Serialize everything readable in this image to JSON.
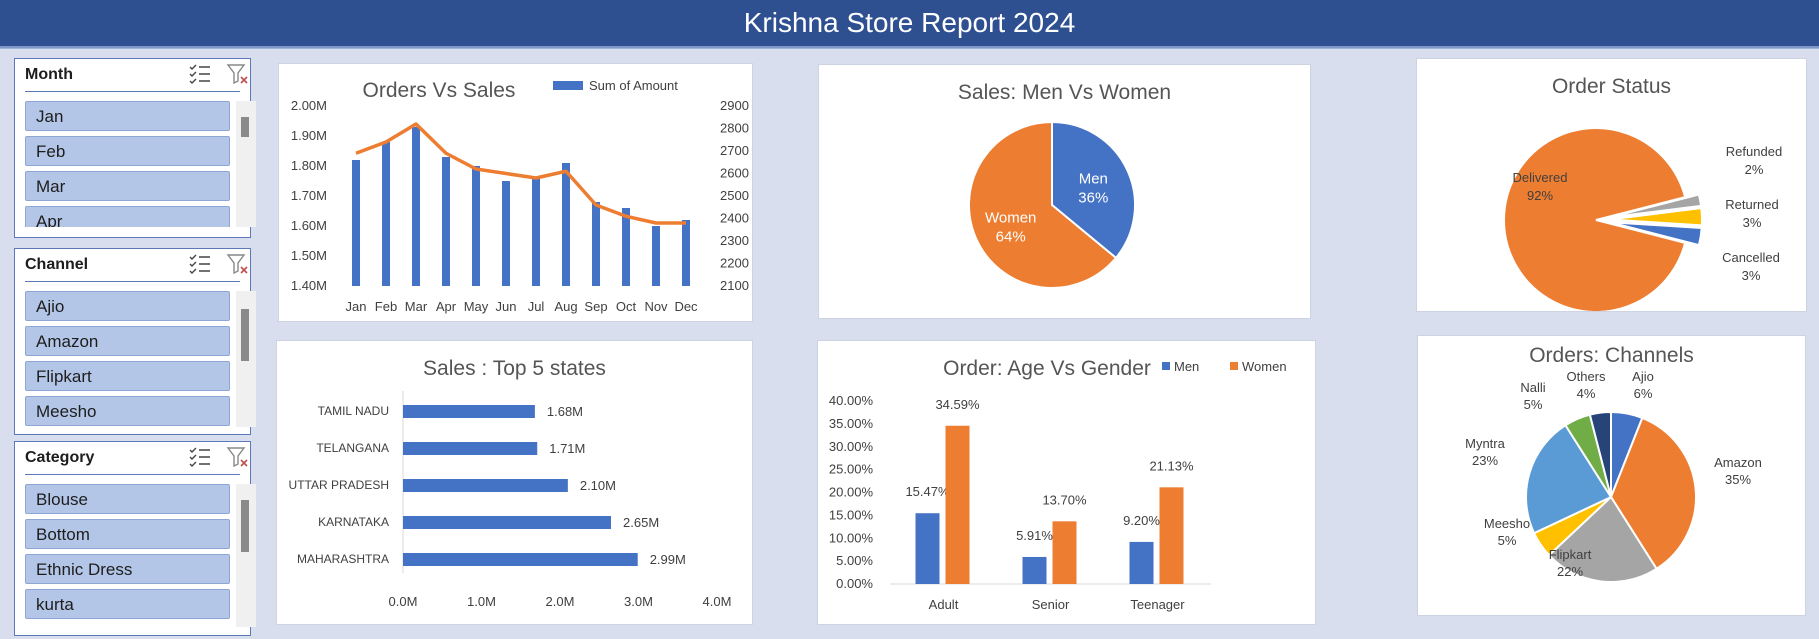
{
  "header": {
    "title": "Krishna Store Report 2024"
  },
  "slicers": {
    "month": {
      "label": "Month",
      "items": [
        "Jan",
        "Feb",
        "Mar",
        "Apr"
      ]
    },
    "channel": {
      "label": "Channel",
      "items": [
        "Ajio",
        "Amazon",
        "Flipkart",
        "Meesho"
      ]
    },
    "category": {
      "label": "Category",
      "items": [
        "Blouse",
        "Bottom",
        "Ethnic Dress",
        "kurta"
      ]
    }
  },
  "colors": {
    "blue": "#4472c4",
    "orange": "#ed7d31",
    "gray": "#a5a5a5",
    "yellow": "#ffc000",
    "lightblue": "#5b9bd5",
    "green": "#70ad47",
    "navy": "#264478"
  },
  "chart_data": [
    {
      "type": "bar",
      "title": "Orders Vs Sales",
      "categories": [
        "Jan",
        "Feb",
        "Mar",
        "Apr",
        "May",
        "Jun",
        "Jul",
        "Aug",
        "Sep",
        "Oct",
        "Nov",
        "Dec"
      ],
      "series": [
        {
          "name": "Sum of Amount",
          "values": [
            1.82,
            1.88,
            1.93,
            1.83,
            1.8,
            1.75,
            1.76,
            1.81,
            1.68,
            1.66,
            1.6,
            1.62
          ]
        },
        {
          "values": [
            2690,
            2740,
            2820,
            2690,
            2620,
            2600,
            2580,
            2610,
            2460,
            2410,
            2380,
            2380
          ]
        }
      ],
      "y_ticks": [
        "2.00M",
        "1.90M",
        "1.80M",
        "1.70M",
        "1.60M",
        "1.50M",
        "1.40M"
      ],
      "y2_ticks": [
        "2900",
        "2800",
        "2700",
        "2600",
        "2500",
        "2400",
        "2300",
        "2200",
        "2100"
      ],
      "ylim": [
        1.4,
        2.0
      ],
      "y2lim": [
        2100,
        2900
      ],
      "legend": "top-right"
    },
    {
      "type": "pie",
      "title": "Sales: Men Vs Women",
      "categories": [
        "Men",
        "Women"
      ],
      "values": [
        36,
        64
      ],
      "labels": [
        "36%",
        "64%"
      ]
    },
    {
      "type": "pie",
      "title": "Order Status",
      "categories": [
        "Delivered",
        "Refunded",
        "Returned",
        "Cancelled"
      ],
      "values": [
        92,
        2,
        3,
        3
      ],
      "labels": [
        "92%",
        "2%",
        "3%",
        "3%"
      ]
    },
    {
      "type": "bar",
      "title": "Sales : Top 5 states",
      "categories": [
        "TAMIL NADU",
        "TELANGANA",
        "UTTAR PRADESH",
        "KARNATAKA",
        "MAHARASHTRA"
      ],
      "values": [
        1.68,
        1.71,
        2.1,
        2.65,
        2.99
      ],
      "labels": [
        "1.68M",
        "1.71M",
        "2.10M",
        "2.65M",
        "2.99M"
      ],
      "x_ticks": [
        "0.0M",
        "1.0M",
        "2.0M",
        "3.0M",
        "4.0M"
      ],
      "xlim": [
        0,
        4
      ]
    },
    {
      "type": "bar",
      "title": "Order: Age Vs Gender",
      "categories": [
        "Adult",
        "Senior",
        "Teenager"
      ],
      "series": [
        {
          "name": "Men",
          "values": [
            15.47,
            5.91,
            9.2
          ],
          "labels": [
            "15.47%",
            "5.91%",
            "9.20%"
          ]
        },
        {
          "name": "Women",
          "values": [
            34.59,
            13.7,
            21.13
          ],
          "labels": [
            "34.59%",
            "13.70%",
            "21.13%"
          ]
        }
      ],
      "y_ticks": [
        "40.00%",
        "35.00%",
        "30.00%",
        "25.00%",
        "20.00%",
        "15.00%",
        "10.00%",
        "5.00%",
        "0.00%"
      ],
      "ylim": [
        0,
        40
      ],
      "legend": "top-right"
    },
    {
      "type": "pie",
      "title": "Orders: Channels",
      "categories": [
        "Ajio",
        "Amazon",
        "Flipkart",
        "Meesho",
        "Myntra",
        "Nalli",
        "Others"
      ],
      "values": [
        6,
        35,
        22,
        5,
        23,
        5,
        4
      ],
      "labels": [
        "6%",
        "35%",
        "22%",
        "5%",
        "23%",
        "5%",
        "4%"
      ]
    }
  ]
}
